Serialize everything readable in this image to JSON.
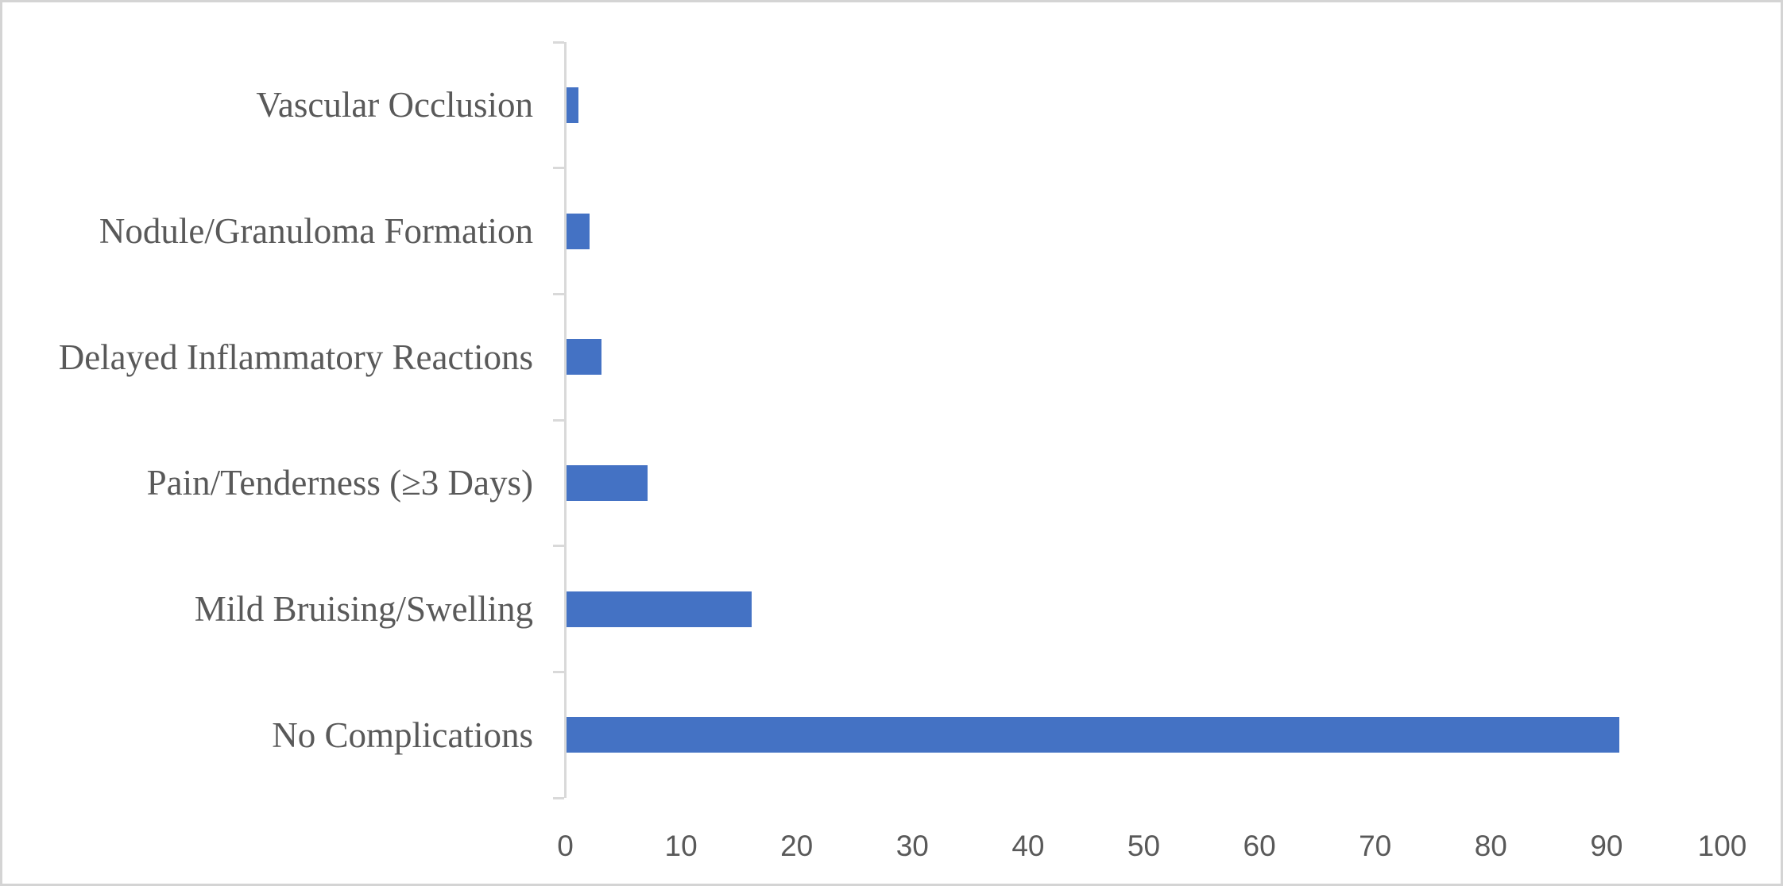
{
  "chart_data": {
    "type": "bar",
    "orientation": "horizontal",
    "title": "",
    "xlabel": "",
    "ylabel": "",
    "categories": [
      "Vascular Occlusion",
      "Nodule/Granuloma Formation",
      "Delayed Inflammatory Reactions",
      "Pain/Tenderness (≥3 Days)",
      "Mild Bruising/Swelling",
      "No Complications"
    ],
    "values": [
      1,
      2,
      3,
      7,
      16,
      91
    ],
    "xlim": [
      0,
      100
    ],
    "xticks": [
      0,
      10,
      20,
      30,
      40,
      50,
      60,
      70,
      80,
      90,
      100
    ],
    "grid": false,
    "legend": "none",
    "bar_color": "#4472C4",
    "axis_line_color": "#D9D9D9",
    "text_color": "#595959"
  }
}
